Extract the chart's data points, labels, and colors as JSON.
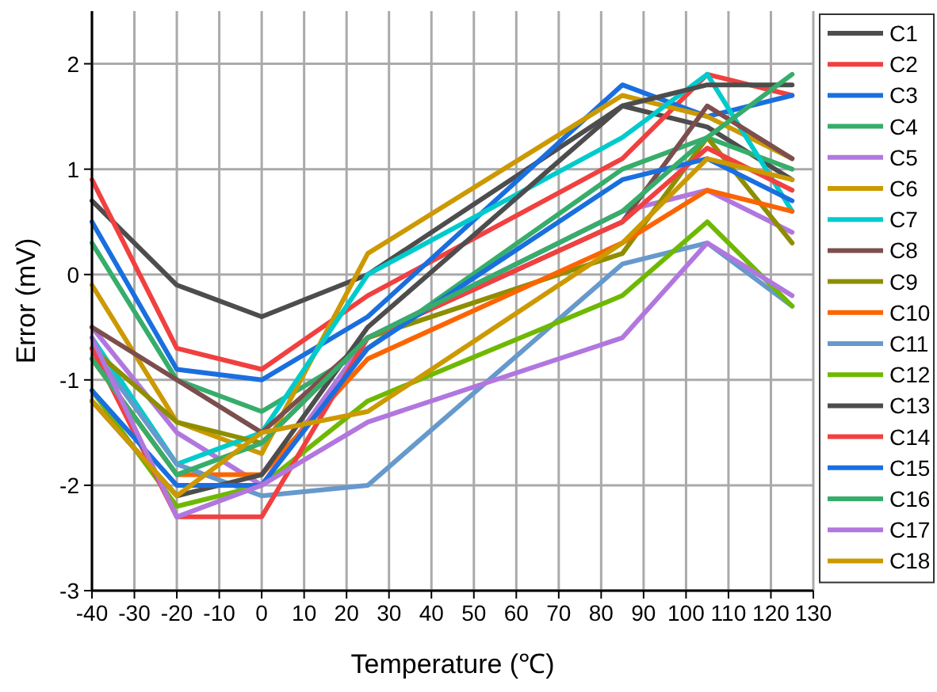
{
  "chart_data": {
    "type": "line",
    "xlabel": "Temperature (℃)",
    "ylabel": "Error (mV)",
    "x": [
      -40,
      -20,
      0,
      25,
      85,
      105,
      125
    ],
    "xlim": [
      -40,
      130
    ],
    "xticks": [
      -40,
      -30,
      -20,
      -10,
      0,
      10,
      20,
      30,
      40,
      50,
      60,
      70,
      80,
      90,
      100,
      110,
      120,
      130
    ],
    "ylim": [
      -3,
      2.5
    ],
    "yticks": [
      -3,
      -2,
      -1,
      0,
      1,
      2
    ],
    "grid": true,
    "legend": "right",
    "line_style": "solid",
    "marker": "none",
    "series": [
      {
        "name": "C1",
        "color": "#4d4d4d",
        "values": [
          0.7,
          -0.1,
          -0.4,
          0.0,
          1.6,
          1.4,
          0.9
        ]
      },
      {
        "name": "C2",
        "color": "#f14040",
        "values": [
          0.9,
          -0.7,
          -0.9,
          -0.2,
          1.1,
          1.9,
          1.7
        ]
      },
      {
        "name": "C3",
        "color": "#1a6fdf",
        "values": [
          0.5,
          -0.9,
          -1.0,
          -0.4,
          1.8,
          1.5,
          1.7
        ]
      },
      {
        "name": "C4",
        "color": "#37ad6b",
        "values": [
          0.3,
          -1.0,
          -1.3,
          -0.7,
          1.0,
          1.3,
          1.0
        ]
      },
      {
        "name": "C5",
        "color": "#b177de",
        "values": [
          -0.5,
          -1.5,
          -2.0,
          -0.6,
          0.6,
          0.8,
          0.4
        ]
      },
      {
        "name": "C6",
        "color": "#cc9900",
        "values": [
          -0.1,
          -1.4,
          -1.7,
          0.2,
          1.7,
          1.5,
          1.1
        ]
      },
      {
        "name": "C7",
        "color": "#00cbcc",
        "values": [
          -0.6,
          -1.8,
          -1.5,
          0.0,
          1.3,
          1.9,
          0.6
        ]
      },
      {
        "name": "C8",
        "color": "#7d4e4e",
        "values": [
          -0.5,
          -1.0,
          -1.5,
          -0.6,
          0.5,
          1.6,
          1.1
        ]
      },
      {
        "name": "C9",
        "color": "#8e8e00",
        "values": [
          -0.7,
          -1.4,
          -1.6,
          -0.6,
          0.2,
          1.3,
          0.3
        ]
      },
      {
        "name": "C10",
        "color": "#fb6501",
        "values": [
          -0.8,
          -1.9,
          -1.9,
          -0.8,
          0.3,
          0.8,
          0.6
        ]
      },
      {
        "name": "C11",
        "color": "#6699cc",
        "values": [
          -0.7,
          -1.8,
          -2.1,
          -2.0,
          0.1,
          0.3,
          -0.3
        ]
      },
      {
        "name": "C12",
        "color": "#6fb802",
        "values": [
          -1.1,
          -2.2,
          -2.0,
          -1.2,
          -0.2,
          0.5,
          -0.3
        ]
      },
      {
        "name": "C13",
        "color": "#4d4d4d",
        "values": [
          -1.2,
          -2.1,
          -1.9,
          -0.5,
          1.6,
          1.8,
          1.8
        ]
      },
      {
        "name": "C14",
        "color": "#f14040",
        "values": [
          -0.7,
          -2.3,
          -2.3,
          -0.6,
          0.5,
          1.2,
          0.8
        ]
      },
      {
        "name": "C15",
        "color": "#1a6fdf",
        "values": [
          -1.1,
          -2.0,
          -2.0,
          -0.7,
          0.9,
          1.1,
          0.7
        ]
      },
      {
        "name": "C16",
        "color": "#37ad6b",
        "values": [
          -0.8,
          -1.9,
          -1.6,
          -0.6,
          0.6,
          1.3,
          1.9
        ]
      },
      {
        "name": "C17",
        "color": "#b177de",
        "values": [
          -0.6,
          -2.3,
          -2.0,
          -1.4,
          -0.6,
          0.3,
          -0.2
        ]
      },
      {
        "name": "C18",
        "color": "#cc9900",
        "values": [
          -1.2,
          -2.1,
          -1.5,
          -1.3,
          0.3,
          1.1,
          0.9
        ]
      }
    ]
  }
}
